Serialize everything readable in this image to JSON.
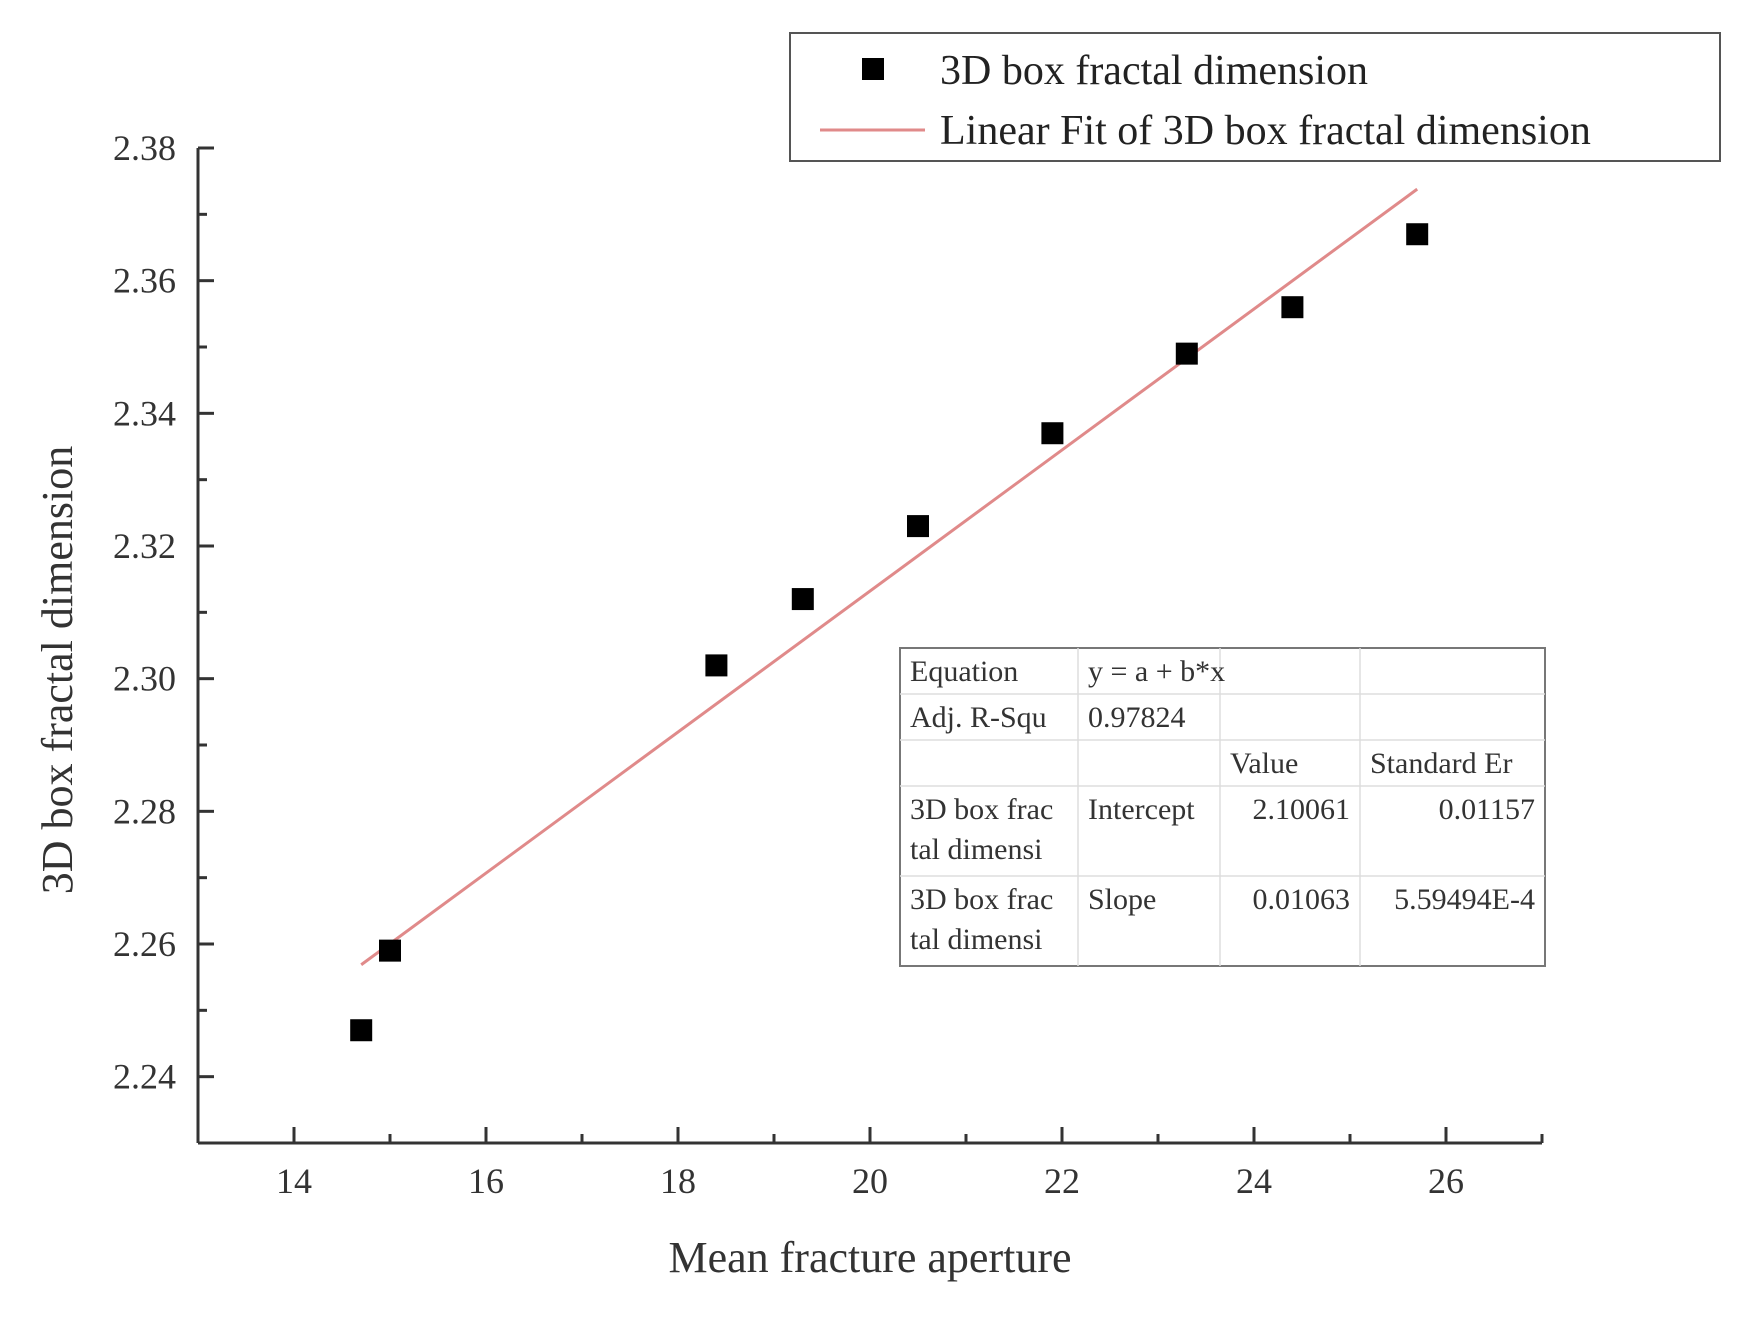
{
  "chart_data": {
    "type": "scatter",
    "xlabel": "Mean fracture aperture",
    "ylabel": "3D box fractal dimension",
    "xlim": [
      13,
      27
    ],
    "ylim": [
      2.23,
      2.38
    ],
    "x_ticks": [
      14,
      16,
      18,
      20,
      22,
      24,
      26
    ],
    "y_ticks": [
      2.24,
      2.26,
      2.28,
      2.3,
      2.32,
      2.34,
      2.36,
      2.38
    ],
    "x_tick_labels": [
      "14",
      "16",
      "18",
      "20",
      "22",
      "24",
      "26"
    ],
    "y_tick_labels": [
      "2.24",
      "2.26",
      "2.28",
      "2.30",
      "2.32",
      "2.34",
      "2.36",
      "2.38"
    ],
    "grid": false,
    "legend_position": "top-right",
    "series": [
      {
        "name": "3D box fractal dimension",
        "kind": "scatter",
        "color": "#000000",
        "x": [
          14.7,
          15.0,
          18.4,
          19.3,
          20.5,
          21.9,
          23.3,
          24.4,
          25.7
        ],
        "y": [
          2.247,
          2.259,
          2.302,
          2.312,
          2.323,
          2.337,
          2.349,
          2.356,
          2.367
        ]
      },
      {
        "name": "Linear Fit of 3D box fractal dimension",
        "kind": "line",
        "color": "#e08a8a",
        "intercept": 2.10061,
        "slope": 0.01063,
        "x_range": [
          14.7,
          25.7
        ]
      }
    ],
    "fit_table": {
      "rows": [
        [
          "Equation",
          "y = a + b*x",
          "",
          ""
        ],
        [
          "Adj. R-Squ",
          "0.97824",
          "",
          ""
        ],
        [
          "",
          "",
          "Value",
          "Standard Er"
        ],
        [
          "3D box frac tal dimensi",
          "Intercept",
          "2.10061",
          "0.01157"
        ],
        [
          "3D box frac tal dimensi",
          "Slope",
          "0.01063",
          "5.59494E-4"
        ]
      ]
    }
  }
}
